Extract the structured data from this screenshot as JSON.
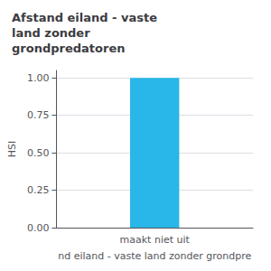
{
  "chart_data": {
    "type": "bar",
    "title": "Afstand eiland - vaste\nland zonder\ngrondpredatoren",
    "categories": [
      "maakt niet uit"
    ],
    "values": [
      1.0
    ],
    "color": "#29b6e8",
    "xlabel": "nd eiland - vaste land zonder grondpre",
    "ylabel": "HSI",
    "ylim": [
      0,
      1.05
    ],
    "yticks": [
      {
        "value": 0,
        "label": "0.00"
      },
      {
        "value": 0.25,
        "label": "0.25"
      },
      {
        "value": 0.5,
        "label": "0.50"
      },
      {
        "value": 0.75,
        "label": "0.75"
      },
      {
        "value": 1.0,
        "label": "1.00"
      }
    ],
    "grid": true
  }
}
